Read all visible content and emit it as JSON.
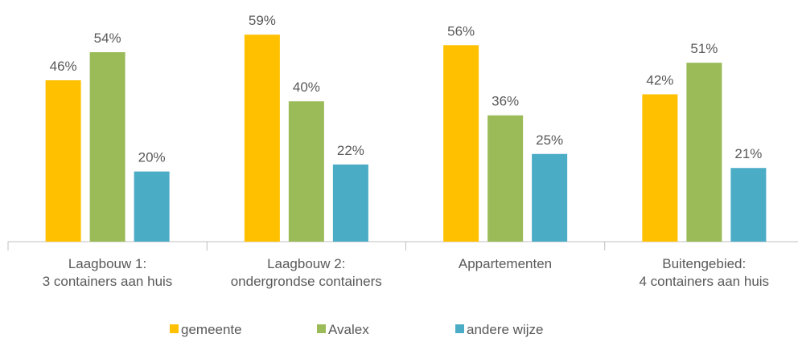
{
  "chart_data": {
    "type": "bar",
    "categories": [
      "Laagbouw 1:\n3 containers aan huis",
      "Laagbouw 2:\nondergrondse containers",
      "Appartementen",
      "Buitengebied:\n4 containers aan huis"
    ],
    "series": [
      {
        "name": "gemeente",
        "color": "#FFC000",
        "values": [
          46,
          59,
          56,
          42
        ],
        "value_labels": [
          "46%",
          "59%",
          "56%",
          "42%"
        ]
      },
      {
        "name": "Avalex",
        "color": "#9BBB59",
        "values": [
          54,
          40,
          36,
          51
        ],
        "value_labels": [
          "54%",
          "40%",
          "36%",
          "51%"
        ]
      },
      {
        "name": "andere wijze",
        "color": "#4BACC6",
        "values": [
          20,
          22,
          25,
          21
        ],
        "value_labels": [
          "20%",
          "22%",
          "25%",
          "21%"
        ]
      }
    ]
  }
}
